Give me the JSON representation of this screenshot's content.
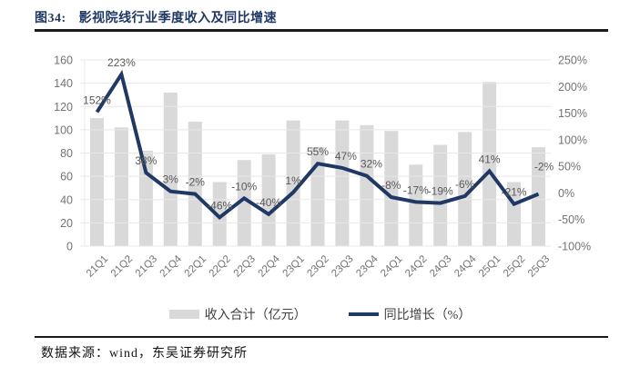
{
  "title": {
    "prefix": "图34:",
    "text": "影视院线行业季度收入及同比增速"
  },
  "legend": {
    "bar_label": "收入合计（亿元）",
    "line_label": "同比增长（%）"
  },
  "footer": {
    "source_text": "数据来源：wind，东吴证券研究所"
  },
  "colors": {
    "navy": "#1F3864",
    "bar_gray": "#D9D9D9",
    "grid_gray": "#E8E8E8",
    "axis_label_gray": "#737373",
    "data_label_gray": "#595959",
    "rule_black": "#1a1a1a"
  },
  "chart_data": {
    "type": "bar",
    "subtype": "bar+line combo, dual axis",
    "categories": [
      "21Q1",
      "21Q2",
      "21Q3",
      "21Q4",
      "22Q1",
      "22Q2",
      "22Q3",
      "22Q4",
      "23Q1",
      "23Q2",
      "23Q3",
      "23Q4",
      "24Q1",
      "24Q2",
      "24Q3",
      "24Q4",
      "25Q1",
      "25Q2",
      "25Q3"
    ],
    "series": [
      {
        "name": "收入合计（亿元）",
        "type": "bar",
        "axis": "left",
        "values": [
          110,
          102,
          82,
          132,
          107,
          55,
          74,
          79,
          108,
          85,
          108,
          104,
          99,
          70,
          87,
          98,
          141,
          55,
          85
        ]
      },
      {
        "name": "同比增长（%）",
        "type": "line",
        "axis": "right",
        "values": [
          152,
          223,
          38,
          3,
          -2,
          -46,
          -10,
          -40,
          1,
          55,
          47,
          32,
          -8,
          -17,
          -19,
          -6,
          41,
          -21,
          -2
        ],
        "point_labels": [
          "152%",
          "223%",
          "38%",
          "3%",
          "-2%",
          "-46%",
          "-10%",
          "-40%",
          "1%",
          "55%",
          "47%",
          "32%",
          "-8%",
          "-17%",
          "-19%",
          "-6%",
          "41%",
          "-21%",
          "-2%"
        ]
      }
    ],
    "left_axis": {
      "min": 0,
      "max": 160,
      "step": 20,
      "tick_labels": [
        "0",
        "20",
        "40",
        "60",
        "80",
        "100",
        "120",
        "140",
        "160"
      ]
    },
    "right_axis": {
      "min": -100,
      "max": 250,
      "step": 50,
      "tick_labels": [
        "-100%",
        "-50%",
        "0%",
        "50%",
        "100%",
        "150%",
        "200%",
        "250%"
      ]
    },
    "grid": true,
    "legend_position": "bottom"
  }
}
